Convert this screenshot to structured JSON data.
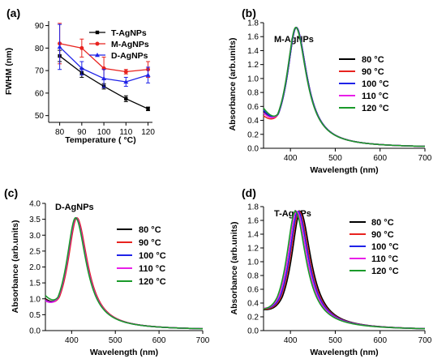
{
  "chart_data": [
    {
      "panel_label": "(a)",
      "type": "line",
      "xlabel": "Temperature ( °C)",
      "ylabel": "FWHM (nm)",
      "xlim": [
        75,
        122
      ],
      "ylim": [
        47,
        92
      ],
      "xticks": [
        80,
        90,
        100,
        110,
        120
      ],
      "yticks": [
        50,
        60,
        70,
        80,
        90
      ],
      "legend_position": "top-right",
      "x": [
        80,
        90,
        100,
        110,
        120
      ],
      "series": [
        {
          "name": "T-AgNPs",
          "color": "#000000",
          "values": [
            76.5,
            69,
            63,
            57.5,
            53
          ],
          "errors": [
            2.5,
            2.0,
            1.2,
            1.3,
            0.8
          ]
        },
        {
          "name": "M-AgNPs",
          "color": "#e8231f",
          "values": [
            82,
            80,
            71,
            69.5,
            70.5
          ],
          "errors": [
            9,
            4,
            5,
            1.0,
            3.5
          ]
        },
        {
          "name": "D-AgNPs",
          "color": "#1f23e8",
          "values": [
            80.5,
            71,
            66.5,
            65,
            68
          ],
          "errors": [
            10,
            3.0,
            4.0,
            2.0,
            3.5
          ]
        }
      ]
    },
    {
      "panel_label": "(b)",
      "type": "line",
      "title": "M-AgNPs",
      "xlabel": "Wavelength (nm)",
      "ylabel": "Absorbance (arb.units)",
      "xlim": [
        340,
        700
      ],
      "ylim": [
        0,
        1.8
      ],
      "xticks": [
        400,
        500,
        600,
        700
      ],
      "yticks": [
        0.0,
        0.2,
        0.4,
        0.6,
        0.8,
        1.0,
        1.2,
        1.4,
        1.6,
        1.8
      ],
      "legend_position": "right",
      "series": [
        {
          "name": "80 °C",
          "color": "#000000",
          "peak_nm": 413,
          "peak_abs": 1.71,
          "abs_at_340": 0.51
        },
        {
          "name": "90 °C",
          "color": "#e8231f",
          "peak_nm": 413,
          "peak_abs": 1.71,
          "abs_at_340": 0.44
        },
        {
          "name": "100 °C",
          "color": "#1f23e8",
          "peak_nm": 413,
          "peak_abs": 1.71,
          "abs_at_340": 0.52
        },
        {
          "name": "110 °C",
          "color": "#e81fe8",
          "peak_nm": 412,
          "peak_abs": 1.71,
          "abs_at_340": 0.48
        },
        {
          "name": "120 °C",
          "color": "#1a9a2a",
          "peak_nm": 412,
          "peak_abs": 1.71,
          "abs_at_340": 0.55
        }
      ]
    },
    {
      "panel_label": "(c)",
      "type": "line",
      "title": "D-AgNPs",
      "xlabel": "Wavelength (nm)",
      "ylabel": "Absorbance (arb.units)",
      "xlim": [
        340,
        700
      ],
      "ylim": [
        0,
        4.0
      ],
      "xticks": [
        400,
        500,
        600,
        700
      ],
      "yticks": [
        0.0,
        0.5,
        1.0,
        1.5,
        2.0,
        2.5,
        3.0,
        3.5,
        4.0
      ],
      "legend_position": "right",
      "series": [
        {
          "name": "80 °C",
          "color": "#000000",
          "peak_nm": 411,
          "peak_abs": 3.5,
          "abs_at_340": 0.95
        },
        {
          "name": "90 °C",
          "color": "#e8231f",
          "peak_nm": 412,
          "peak_abs": 3.5,
          "abs_at_340": 0.92
        },
        {
          "name": "100 °C",
          "color": "#1f23e8",
          "peak_nm": 410,
          "peak_abs": 3.5,
          "abs_at_340": 0.9
        },
        {
          "name": "110 °C",
          "color": "#e81fe8",
          "peak_nm": 410,
          "peak_abs": 3.5,
          "abs_at_340": 0.88
        },
        {
          "name": "120 °C",
          "color": "#1a9a2a",
          "peak_nm": 409,
          "peak_abs": 3.5,
          "abs_at_340": 1.05
        }
      ]
    },
    {
      "panel_label": "(d)",
      "type": "line",
      "title": "T-AgNPs",
      "xlabel": "Wavelength (nm)",
      "ylabel": "Absorbance (arb.units)",
      "xlim": [
        340,
        700
      ],
      "ylim": [
        0,
        1.8
      ],
      "xticks": [
        400,
        500,
        600,
        700
      ],
      "yticks": [
        0.0,
        0.2,
        0.4,
        0.6,
        0.8,
        1.0,
        1.2,
        1.4,
        1.6,
        1.8
      ],
      "legend_position": "right",
      "series": [
        {
          "name": "80 °C",
          "color": "#000000",
          "peak_nm": 422,
          "peak_abs": 1.71,
          "abs_at_340": 0.28
        },
        {
          "name": "90 °C",
          "color": "#e8231f",
          "peak_nm": 419,
          "peak_abs": 1.71,
          "abs_at_340": 0.29
        },
        {
          "name": "100 °C",
          "color": "#1f23e8",
          "peak_nm": 417,
          "peak_abs": 1.71,
          "abs_at_340": 0.3
        },
        {
          "name": "110 °C",
          "color": "#e81fe8",
          "peak_nm": 414,
          "peak_abs": 1.71,
          "abs_at_340": 0.3
        },
        {
          "name": "120 °C",
          "color": "#1a9a2a",
          "peak_nm": 411,
          "peak_abs": 1.71,
          "abs_at_340": 0.29
        }
      ]
    }
  ]
}
